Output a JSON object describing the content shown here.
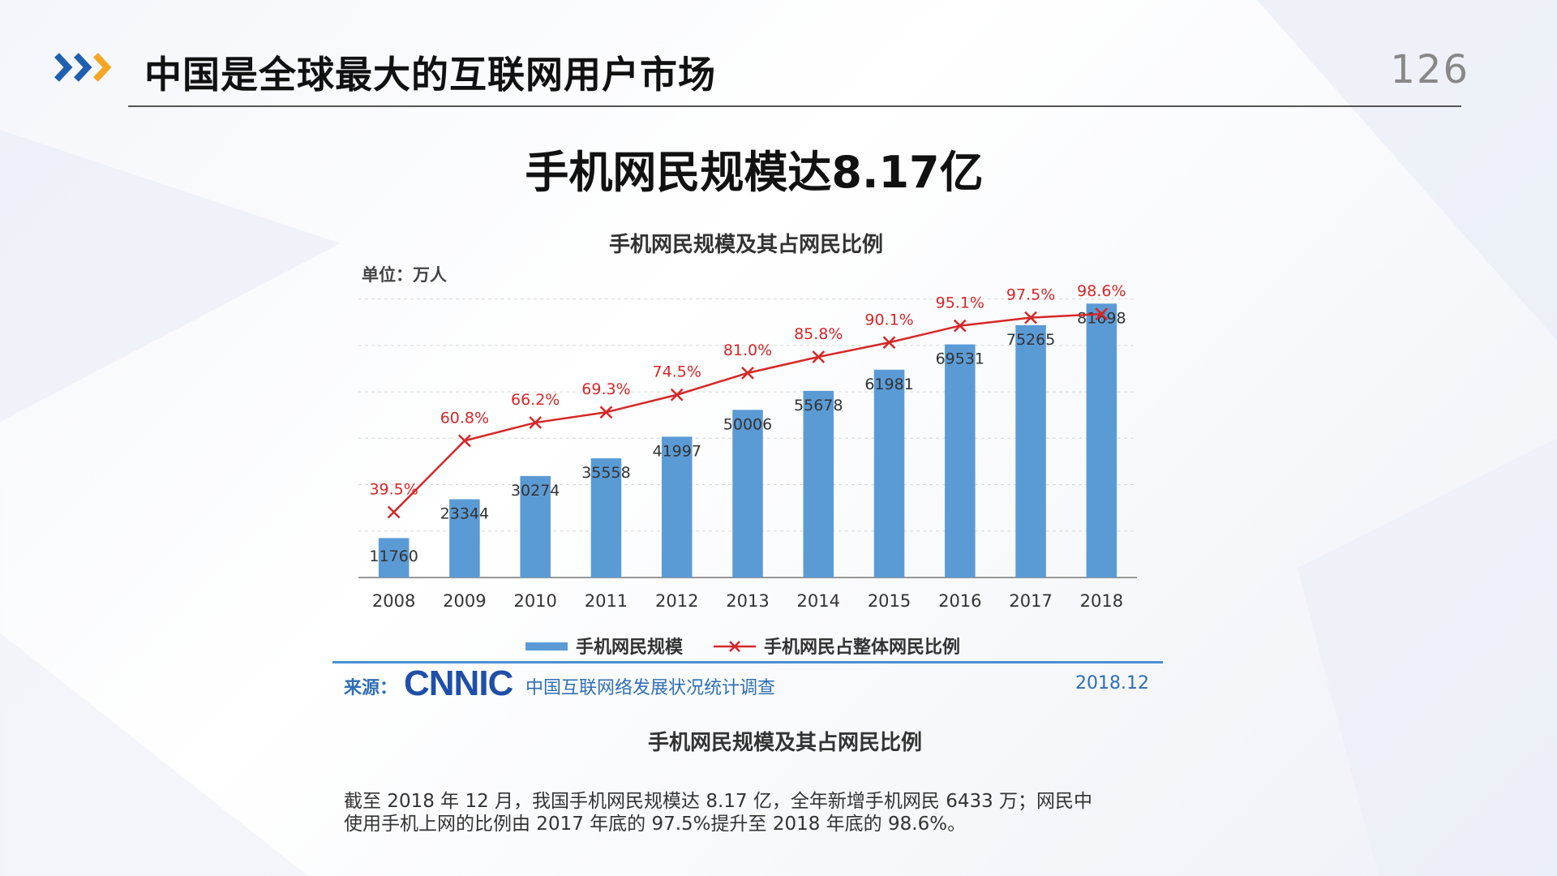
{
  "header": {
    "title": "中国是全球最大的互联网用户市场",
    "page_number": "126"
  },
  "main_heading": "手机网民规模达8.17亿",
  "chart_data": {
    "type": "bar",
    "title": "手机网民规模及其占网民比例",
    "unit_label": "单位：万人",
    "categories": [
      "2008",
      "2009",
      "2010",
      "2011",
      "2012",
      "2013",
      "2014",
      "2015",
      "2016",
      "2017",
      "2018"
    ],
    "series": [
      {
        "name": "手机网民规模",
        "type": "bar",
        "values": [
          11760,
          23344,
          30274,
          35558,
          41997,
          50006,
          55678,
          61981,
          69531,
          75265,
          81698
        ],
        "labels": [
          "11760",
          "23344",
          "30274",
          "35558",
          "41997",
          "50006",
          "55678",
          "61981",
          "69531",
          "75265",
          "81698"
        ],
        "color": "#5b9bd5"
      },
      {
        "name": "手机网民占整体网民比例",
        "type": "line",
        "values": [
          39.5,
          60.8,
          66.2,
          69.3,
          74.5,
          81.0,
          85.8,
          90.1,
          95.1,
          97.5,
          98.6
        ],
        "labels": [
          "39.5%",
          "60.8%",
          "66.2%",
          "69.3%",
          "74.5%",
          "81.0%",
          "85.8%",
          "90.1%",
          "95.1%",
          "97.5%",
          "98.6%"
        ],
        "color": "#d62728"
      }
    ],
    "grid": true,
    "legend_position": "bottom"
  },
  "source": {
    "label": "来源：",
    "logo": "CNNIC",
    "name": "中国互联网络发展状况统计调查",
    "date": "2018.12"
  },
  "caption": "手机网民规模及其占网民比例",
  "body": {
    "line1": "截至 2018 年 12 月，我国手机网民规模达 8.17 亿，全年新增手机网民 6433 万；网民中",
    "line2": "使用手机上网的比例由 2017 年底的 97.5%提升至 2018 年底的 98.6%。"
  },
  "colors": {
    "arrow_blue": "#1f5fb0",
    "arrow_orange": "#f5a623",
    "accent_blue": "#4a8fd4"
  },
  "icons": [
    "chevron-right-icon"
  ]
}
